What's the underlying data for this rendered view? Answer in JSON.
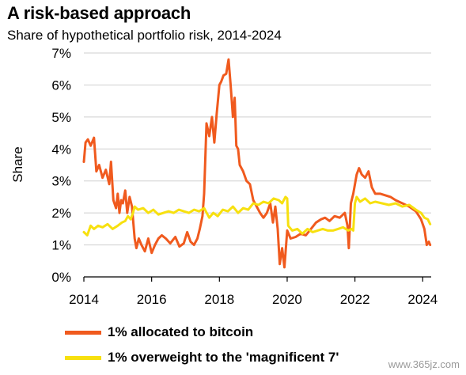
{
  "chart_data": {
    "type": "line",
    "title": "A risk-based approach",
    "subtitle": "Share of hypothetical portfolio risk, 2014-2024",
    "xlabel": "",
    "ylabel": "Share",
    "xlim": [
      2014,
      2024.25
    ],
    "ylim": [
      0,
      7
    ],
    "x_ticks": [
      "2014",
      "2016",
      "2018",
      "2020",
      "2022",
      "2024"
    ],
    "y_ticks": [
      "0%",
      "1%",
      "2%",
      "3%",
      "4%",
      "5%",
      "6%",
      "7%"
    ],
    "grid": true,
    "legend": "bottom",
    "series": [
      {
        "name": "1% allocated to bitcoin",
        "color": "#f05a1e",
        "x": [
          2014.0,
          2014.05,
          2014.12,
          2014.2,
          2014.3,
          2014.37,
          2014.45,
          2014.55,
          2014.65,
          2014.75,
          2014.8,
          2014.87,
          2014.95,
          2015.0,
          2015.05,
          2015.1,
          2015.15,
          2015.22,
          2015.28,
          2015.35,
          2015.42,
          2015.5,
          2015.55,
          2015.62,
          2015.7,
          2015.8,
          2015.9,
          2016.0,
          2016.1,
          2016.2,
          2016.3,
          2016.42,
          2016.55,
          2016.7,
          2016.82,
          2016.95,
          2017.05,
          2017.15,
          2017.25,
          2017.35,
          2017.42,
          2017.5,
          2017.55,
          2017.62,
          2017.7,
          2017.78,
          2017.85,
          2017.92,
          2018.0,
          2018.05,
          2018.12,
          2018.2,
          2018.27,
          2018.33,
          2018.4,
          2018.45,
          2018.5,
          2018.55,
          2018.6,
          2018.7,
          2018.8,
          2018.9,
          2019.0,
          2019.1,
          2019.2,
          2019.3,
          2019.4,
          2019.5,
          2019.58,
          2019.65,
          2019.72,
          2019.78,
          2019.85,
          2019.92,
          2020.0,
          2020.1,
          2020.25,
          2020.4,
          2020.55,
          2020.7,
          2020.85,
          2021.0,
          2021.12,
          2021.25,
          2021.4,
          2021.55,
          2021.7,
          2021.78,
          2021.82,
          2021.88,
          2021.95,
          2022.05,
          2022.12,
          2022.2,
          2022.3,
          2022.4,
          2022.5,
          2022.6,
          2022.75,
          2022.9,
          2023.05,
          2023.2,
          2023.4,
          2023.6,
          2023.8,
          2023.95,
          2024.05,
          2024.12,
          2024.18,
          2024.22
        ],
        "y": [
          3.6,
          4.2,
          4.3,
          4.1,
          4.35,
          3.3,
          3.5,
          3.1,
          3.35,
          2.9,
          3.6,
          2.4,
          2.15,
          2.6,
          2.0,
          2.4,
          2.3,
          2.7,
          2.0,
          2.5,
          2.2,
          1.2,
          0.9,
          1.2,
          1.0,
          0.8,
          1.2,
          0.75,
          1.0,
          1.2,
          1.3,
          1.2,
          1.05,
          1.25,
          0.95,
          1.05,
          1.4,
          1.1,
          1.0,
          1.2,
          1.5,
          1.9,
          2.6,
          4.8,
          4.4,
          5.0,
          4.2,
          5.1,
          6.0,
          6.1,
          6.3,
          6.35,
          6.8,
          6.0,
          5.0,
          5.6,
          4.1,
          4.0,
          3.5,
          3.3,
          3.0,
          2.9,
          2.4,
          2.2,
          2.0,
          1.85,
          2.0,
          2.3,
          1.7,
          2.2,
          1.5,
          0.4,
          0.9,
          0.3,
          1.45,
          1.2,
          1.25,
          1.35,
          1.3,
          1.5,
          1.7,
          1.8,
          1.85,
          1.75,
          1.9,
          1.85,
          2.0,
          1.6,
          0.9,
          2.3,
          2.6,
          3.2,
          3.4,
          3.2,
          3.1,
          3.3,
          2.8,
          2.6,
          2.6,
          2.55,
          2.5,
          2.4,
          2.3,
          2.2,
          2.05,
          1.8,
          1.5,
          1.0,
          1.1,
          1.0
        ]
      },
      {
        "name": "1% overweight to the 'magnificent 7'",
        "color": "#f7e00f",
        "x": [
          2014.0,
          2014.1,
          2014.2,
          2014.3,
          2014.42,
          2014.55,
          2014.7,
          2014.85,
          2015.0,
          2015.12,
          2015.22,
          2015.3,
          2015.38,
          2015.45,
          2015.5,
          2015.6,
          2015.75,
          2015.9,
          2016.05,
          2016.2,
          2016.35,
          2016.5,
          2016.65,
          2016.8,
          2016.95,
          2017.1,
          2017.25,
          2017.4,
          2017.55,
          2017.7,
          2017.82,
          2017.95,
          2018.1,
          2018.25,
          2018.4,
          2018.55,
          2018.7,
          2018.85,
          2019.0,
          2019.15,
          2019.3,
          2019.45,
          2019.6,
          2019.75,
          2019.85,
          2019.95,
          2020.0,
          2020.03,
          2020.15,
          2020.3,
          2020.45,
          2020.6,
          2020.75,
          2020.9,
          2021.05,
          2021.2,
          2021.35,
          2021.5,
          2021.65,
          2021.8,
          2021.9,
          2021.95,
          2022.0,
          2022.05,
          2022.15,
          2022.3,
          2022.45,
          2022.6,
          2022.8,
          2023.0,
          2023.2,
          2023.4,
          2023.6,
          2023.8,
          2023.95,
          2024.05,
          2024.15,
          2024.22
        ],
        "y": [
          1.4,
          1.3,
          1.6,
          1.5,
          1.6,
          1.55,
          1.65,
          1.5,
          1.6,
          1.7,
          1.75,
          1.9,
          1.8,
          2.0,
          2.2,
          2.1,
          2.15,
          2.0,
          2.1,
          1.95,
          2.0,
          2.05,
          2.0,
          2.1,
          2.05,
          2.0,
          2.1,
          2.05,
          2.15,
          1.85,
          2.0,
          1.9,
          2.1,
          2.05,
          2.2,
          2.0,
          2.15,
          2.1,
          2.3,
          2.25,
          2.35,
          2.3,
          2.45,
          2.4,
          2.3,
          2.5,
          2.45,
          1.6,
          1.45,
          1.5,
          1.35,
          1.5,
          1.4,
          1.45,
          1.5,
          1.45,
          1.45,
          1.5,
          1.55,
          1.45,
          1.5,
          1.45,
          2.3,
          2.5,
          2.35,
          2.45,
          2.3,
          2.35,
          2.3,
          2.25,
          2.3,
          2.2,
          2.25,
          2.1,
          2.0,
          1.85,
          1.8,
          1.65
        ]
      }
    ]
  },
  "watermark": "www.365jz.com"
}
